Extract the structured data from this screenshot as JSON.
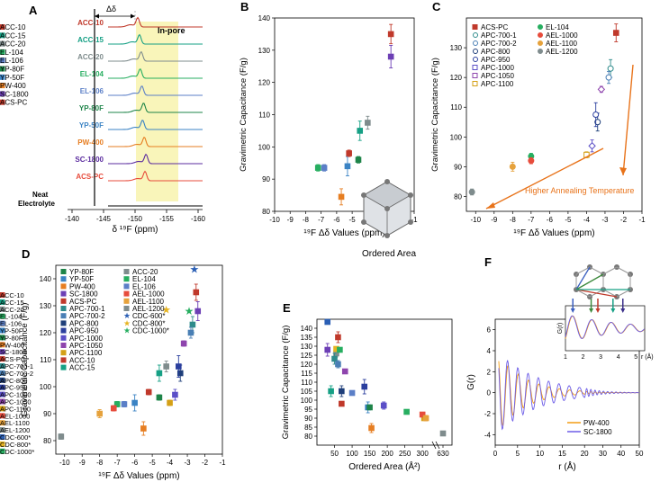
{
  "panels": {
    "A": {
      "label": "A",
      "xlabel": "δ ¹⁹F (ppm)",
      "xticks": [
        "-140",
        "-145",
        "-150",
        "-155",
        "-160"
      ],
      "delta_label": "Δδ",
      "inpore_label": "In-pore",
      "neat_label_1": "Neat",
      "neat_label_2": "Electrolyte",
      "samples": [
        {
          "name": "ACC-10",
          "color": "#c0392b"
        },
        {
          "name": "ACC-15",
          "color": "#16a085"
        },
        {
          "name": "ACC-20",
          "color": "#7f8c8d"
        },
        {
          "name": "EL-104",
          "color": "#27ae60"
        },
        {
          "name": "EL-106",
          "color": "#5b7fc7"
        },
        {
          "name": "YP-80F",
          "color": "#1e8449"
        },
        {
          "name": "YP-50F",
          "color": "#3b83c4"
        },
        {
          "name": "PW-400",
          "color": "#e67e22"
        },
        {
          "name": "SC-1800",
          "color": "#5b2c9f"
        },
        {
          "name": "ACS-PC",
          "color": "#e74c3c"
        }
      ]
    },
    "F": {
      "label": "F",
      "xlabel": "r (Å)",
      "ylabel": "G(r)",
      "xticks": [
        "0",
        "5",
        "10",
        "15",
        "20",
        "30",
        "40",
        "50"
      ],
      "yticks": [
        "-4",
        "-2",
        "0",
        "2",
        "4",
        "6"
      ],
      "inset_xlabel": "r (Å)",
      "inset_ylabel": "G(r)",
      "inset_xticks": [
        "1",
        "2",
        "3",
        "4",
        "5"
      ],
      "legend": [
        {
          "name": "PW-400",
          "color": "#f39c12"
        },
        {
          "name": "SC-1800",
          "color": "#6c5ce7"
        }
      ]
    }
  },
  "chart_data": [
    {
      "panel": "B",
      "type": "scatter",
      "title": "",
      "xlabel": "¹⁹F Δδ Values (ppm)",
      "ylabel": "Gravimetric Capacitance (F/g)",
      "xlim": [
        -10,
        -1
      ],
      "ylim": [
        80,
        140
      ],
      "xticks": [
        -10,
        -9,
        -8,
        -7,
        -6,
        -5,
        -4,
        -3,
        -2,
        -1
      ],
      "yticks": [
        80,
        90,
        100,
        110,
        120,
        130,
        140
      ],
      "legend": "top-left",
      "series": [
        {
          "name": "ACC-10",
          "color": "#c0392b",
          "x": -2.5,
          "y": 135,
          "err": 3
        },
        {
          "name": "ACC-15",
          "color": "#16a085",
          "x": -4.5,
          "y": 105,
          "err": 3
        },
        {
          "name": "ACC-20",
          "color": "#7f8c8d",
          "x": -4.0,
          "y": 107.5,
          "err": 2
        },
        {
          "name": "EL-104",
          "color": "#27ae60",
          "x": -7.2,
          "y": 93.5,
          "err": 1
        },
        {
          "name": "EL-106",
          "color": "#5b7fc7",
          "x": -6.8,
          "y": 93.5,
          "err": 1
        },
        {
          "name": "YP-80F",
          "color": "#1e8449",
          "x": -4.6,
          "y": 96,
          "err": 1
        },
        {
          "name": "YP-50F",
          "color": "#3b83c4",
          "x": -5.3,
          "y": 94,
          "err": 3
        },
        {
          "name": "PW-400",
          "color": "#e67e22",
          "x": -5.7,
          "y": 84.5,
          "err": 2.5
        },
        {
          "name": "SC-1800",
          "color": "#6c3fb5",
          "x": -2.5,
          "y": 128,
          "err": 3.5
        },
        {
          "name": "ACS-PC",
          "color": "#c0392b",
          "x": -5.2,
          "y": 98,
          "err": 1
        }
      ]
    },
    {
      "panel": "C",
      "type": "scatter",
      "title": "",
      "xlabel": "¹⁹F Δδ Values (ppm)",
      "ylabel": "Gravimetric Capacitance (F/g)",
      "xlim": [
        -10.5,
        -1
      ],
      "ylim": [
        75,
        140
      ],
      "xticks": [
        -10,
        -9,
        -8,
        -7,
        -6,
        -5,
        -4,
        -3,
        -2,
        -1
      ],
      "yticks": [
        80,
        90,
        100,
        110,
        120,
        130
      ],
      "legend": "top",
      "annotation": "Higher Annealing Temperature",
      "annotation_color": "#e8731a",
      "series": [
        {
          "name": "ACS-PC",
          "color": "#c0392b",
          "marker": "square",
          "x": -2.4,
          "y": 135,
          "err": 3
        },
        {
          "name": "APC-700-1",
          "color": "#2e8b8b",
          "marker": "circle-open",
          "x": -2.7,
          "y": 123,
          "err": 3
        },
        {
          "name": "APC-700-2",
          "color": "#4a7fb5",
          "marker": "circle-open",
          "x": -2.8,
          "y": 120,
          "err": 2
        },
        {
          "name": "APC-800",
          "color": "#1f3f7a",
          "marker": "circle-open",
          "x": -3.4,
          "y": 105,
          "err": 3
        },
        {
          "name": "APC-950",
          "color": "#2b3f9e",
          "marker": "circle-open",
          "x": -3.5,
          "y": 107.5,
          "err": 4
        },
        {
          "name": "APC-1000",
          "color": "#5b4fc7",
          "marker": "diamond-open",
          "x": -3.7,
          "y": 97,
          "err": 2
        },
        {
          "name": "APC-1050",
          "color": "#8e44ad",
          "marker": "diamond-open",
          "x": -3.2,
          "y": 116,
          "err": 1
        },
        {
          "name": "APC-1100",
          "color": "#d4a017",
          "marker": "square-open",
          "x": -4.0,
          "y": 94,
          "err": 1
        },
        {
          "name": "EL-104",
          "color": "#27ae60",
          "marker": "circle",
          "x": -7.0,
          "y": 93.5,
          "err": 1
        },
        {
          "name": "AEL-1000",
          "color": "#e74c3c",
          "marker": "circle",
          "x": -7.0,
          "y": 92,
          "err": 1
        },
        {
          "name": "AEL-1100",
          "color": "#e6a23c",
          "marker": "circle",
          "x": -8.0,
          "y": 90,
          "err": 1.5
        },
        {
          "name": "AEL-1200",
          "color": "#7f8c8d",
          "marker": "circle",
          "x": -10.2,
          "y": 81.5,
          "err": 1
        }
      ]
    },
    {
      "panel": "D",
      "type": "scatter",
      "title": "",
      "xlabel": "¹⁹F Δδ Values (ppm)",
      "ylabel": "Gravimetric Capacitance (F/g)",
      "xlim": [
        -10.5,
        -1
      ],
      "ylim": [
        75,
        145
      ],
      "xticks": [
        -10,
        -9,
        -8,
        -7,
        -6,
        -5,
        -4,
        -3,
        -2,
        -1
      ],
      "yticks": [
        80,
        90,
        100,
        110,
        120,
        130,
        140
      ],
      "legend": "top-left",
      "series": [
        {
          "name": "YP-80F",
          "color": "#1e8449",
          "x": -4.6,
          "y": 96,
          "err": 1
        },
        {
          "name": "YP-50F",
          "color": "#3b83c4",
          "x": -6.0,
          "y": 94,
          "err": 3
        },
        {
          "name": "PW-400",
          "color": "#e67e22",
          "x": -5.5,
          "y": 84.5,
          "err": 2.5
        },
        {
          "name": "SC-1800",
          "color": "#6c3fb5",
          "x": -2.4,
          "y": 128,
          "err": 3.5
        },
        {
          "name": "ACS-PC",
          "color": "#c0392b",
          "x": -5.2,
          "y": 98,
          "err": 1
        },
        {
          "name": "APC-700-1",
          "color": "#2e8b8b",
          "x": -2.7,
          "y": 123,
          "err": 3
        },
        {
          "name": "APC-700-2",
          "color": "#4a7fb5",
          "x": -2.8,
          "y": 120,
          "err": 2
        },
        {
          "name": "APC-800",
          "color": "#1f3f7a",
          "x": -3.4,
          "y": 105,
          "err": 3
        },
        {
          "name": "APC-950",
          "color": "#2b3f9e",
          "x": -3.5,
          "y": 107.5,
          "err": 4
        },
        {
          "name": "APC-1000",
          "color": "#5b4fc7",
          "x": -3.7,
          "y": 97,
          "err": 2
        },
        {
          "name": "APC-1050",
          "color": "#8e44ad",
          "x": -3.2,
          "y": 116,
          "err": 1
        },
        {
          "name": "APC-1100",
          "color": "#d4a017",
          "x": -4.0,
          "y": 94,
          "err": 1
        },
        {
          "name": "ACC-10",
          "color": "#c0392b",
          "x": -2.5,
          "y": 135,
          "err": 3
        },
        {
          "name": "ACC-15",
          "color": "#16a085",
          "x": -4.6,
          "y": 105,
          "err": 3
        },
        {
          "name": "ACC-20",
          "color": "#7f8c8d",
          "x": -4.2,
          "y": 107.5,
          "err": 2
        },
        {
          "name": "EL-104",
          "color": "#27ae60",
          "x": -7.0,
          "y": 93.5,
          "err": 1
        },
        {
          "name": "EL-106",
          "color": "#5b7fc7",
          "x": -6.6,
          "y": 93.5,
          "err": 1
        },
        {
          "name": "AEL-1000",
          "color": "#e74c3c",
          "x": -7.2,
          "y": 92,
          "err": 1
        },
        {
          "name": "AEL-1100",
          "color": "#e6a23c",
          "x": -8.0,
          "y": 90,
          "err": 1.5
        },
        {
          "name": "AEL-1200",
          "color": "#7f8c8d",
          "x": -10.2,
          "y": 81.5,
          "err": 1
        },
        {
          "name": "CDC-600*",
          "color": "#2b5fb5",
          "marker": "star",
          "x": -2.6,
          "y": 143.5,
          "err": 0
        },
        {
          "name": "CDC-800*",
          "color": "#e6b422",
          "marker": "star",
          "x": -4.2,
          "y": 128.5,
          "err": 0
        },
        {
          "name": "CDC-1000*",
          "color": "#27ae60",
          "marker": "star",
          "x": -2.9,
          "y": 128,
          "err": 0
        }
      ]
    },
    {
      "panel": "E",
      "type": "scatter",
      "title": "",
      "xlabel": "Ordered Area (Å²)",
      "ylabel": "Gravimetric Capacitance (F/g)",
      "xlim": [
        0,
        640
      ],
      "ylim": [
        75,
        145
      ],
      "xticks": [
        50,
        100,
        150,
        200,
        250,
        300,
        630
      ],
      "yticks": [
        80,
        85,
        90,
        95,
        100,
        105,
        110,
        115,
        120,
        125,
        130,
        135,
        140
      ],
      "legend": "left-outside",
      "inset_label": "Ordered Area",
      "series": [
        {
          "name": "ACC-10",
          "color": "#c0392b",
          "x": 60,
          "y": 135,
          "err": 3
        },
        {
          "name": "ACC-15",
          "color": "#16a085",
          "x": 40,
          "y": 105,
          "err": 3
        },
        {
          "name": "ACC-20",
          "color": "#7f8c8d",
          "x": 55,
          "y": 126,
          "err": 2
        },
        {
          "name": "EL-104",
          "color": "#27ae60",
          "x": 255,
          "y": 93.5,
          "err": 1
        },
        {
          "name": "EL-106",
          "color": "#5b7fc7",
          "x": 100,
          "y": 104,
          "err": 1
        },
        {
          "name": "YP-50F",
          "color": "#3b83c4",
          "x": 145,
          "y": 96,
          "err": 3
        },
        {
          "name": "YP-80F",
          "color": "#1e8449",
          "x": 150,
          "y": 96,
          "err": 1
        },
        {
          "name": "PW-400",
          "color": "#e67e22",
          "x": 155,
          "y": 84.5,
          "err": 2.5
        },
        {
          "name": "SC-1800",
          "color": "#6c3fb5",
          "x": 30,
          "y": 128,
          "err": 3.5
        },
        {
          "name": "ACS-PC",
          "color": "#c0392b",
          "x": 70,
          "y": 98,
          "err": 1
        },
        {
          "name": "APC-700-1",
          "color": "#2e8b8b",
          "x": 50,
          "y": 123,
          "err": 3
        },
        {
          "name": "APC-700-2",
          "color": "#4a7fb5",
          "x": 60,
          "y": 120,
          "err": 2
        },
        {
          "name": "APC-800",
          "color": "#1f3f7a",
          "x": 70,
          "y": 105,
          "err": 3
        },
        {
          "name": "APC-950",
          "color": "#2b3f9e",
          "x": 135,
          "y": 107.5,
          "err": 4
        },
        {
          "name": "APC-1000",
          "color": "#5b4fc7",
          "x": 190,
          "y": 97,
          "err": 2
        },
        {
          "name": "APC-1050",
          "color": "#8e44ad",
          "x": 80,
          "y": 116,
          "err": 1
        },
        {
          "name": "APC-1100",
          "color": "#d4a017",
          "x": 305,
          "y": 90,
          "err": 1
        },
        {
          "name": "AEL-1000",
          "color": "#e74c3c",
          "x": 300,
          "y": 92,
          "err": 1
        },
        {
          "name": "AEL-1100",
          "color": "#e6a23c",
          "x": 310,
          "y": 90,
          "err": 1.5
        },
        {
          "name": "AEL-1200",
          "color": "#7f8c8d",
          "x": 630,
          "y": 81.5,
          "err": 1
        },
        {
          "name": "CDC-600*",
          "color": "#2b5fb5",
          "x": 30,
          "y": 143.5,
          "err": 0
        },
        {
          "name": "CDC-800*",
          "color": "#e6b422",
          "x": 55,
          "y": 128.5,
          "err": 0
        },
        {
          "name": "CDC-1000*",
          "color": "#27ae60",
          "x": 65,
          "y": 128,
          "err": 0
        }
      ]
    }
  ]
}
